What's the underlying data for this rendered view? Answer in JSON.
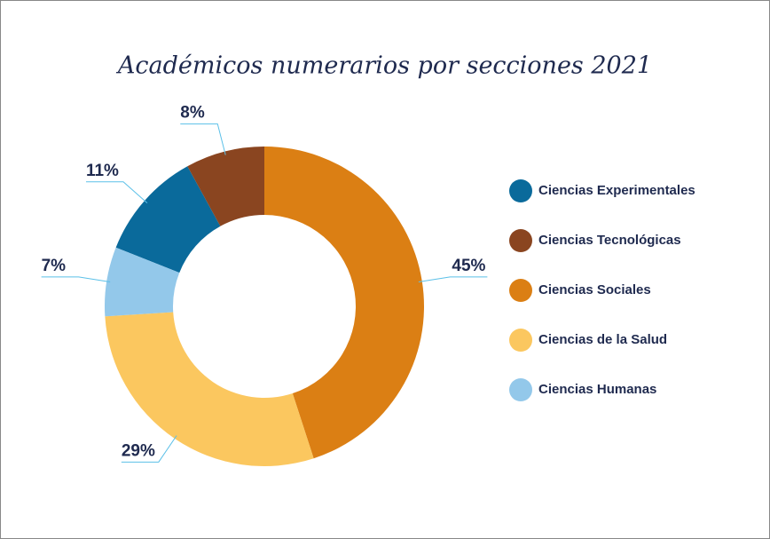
{
  "chart_data": {
    "type": "donut",
    "title": "Académicos numerarios por secciones 2021",
    "categories": [
      "Ciencias Experimentales",
      "Ciencias Tecnológicas",
      "Ciencias Sociales",
      "Ciencias de la Salud",
      "Ciencias Humanas"
    ],
    "values": [
      11,
      8,
      45,
      29,
      7
    ],
    "value_labels": [
      "11%",
      "8%",
      "45%",
      "29%",
      "7%"
    ],
    "colors": [
      "#0a6a9b",
      "#8a4520",
      "#db7f14",
      "#fbc75f",
      "#93c8ea"
    ],
    "legend": "right"
  }
}
